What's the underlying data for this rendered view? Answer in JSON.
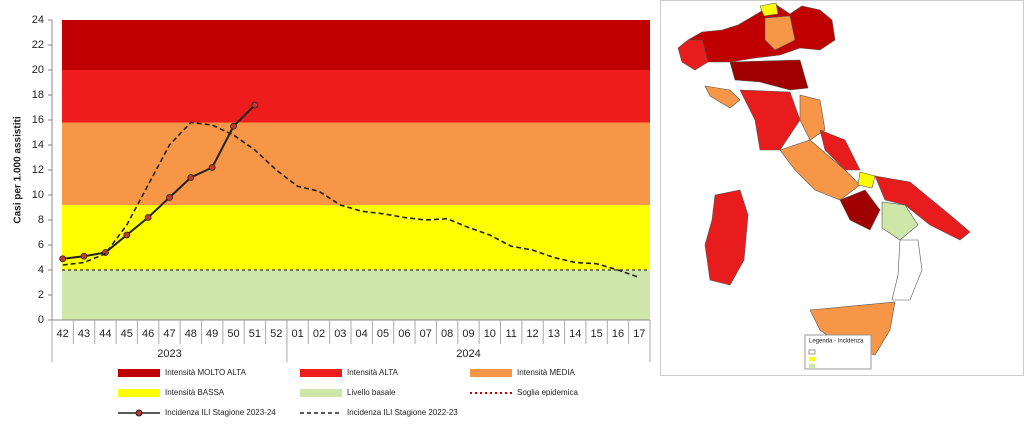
{
  "chart_data": [
    {
      "type": "line",
      "y_label": "Casi per 1.000 assistiti",
      "categories": [
        "42",
        "43",
        "44",
        "45",
        "46",
        "47",
        "48",
        "49",
        "50",
        "51",
        "52",
        "01",
        "02",
        "03",
        "04",
        "05",
        "06",
        "07",
        "08",
        "09",
        "10",
        "11",
        "12",
        "13",
        "14",
        "15",
        "16",
        "17"
      ],
      "x_groups": [
        {
          "label": "2023",
          "count": 11
        },
        {
          "label": "2024",
          "count": 17
        }
      ],
      "ylim": [
        0,
        24
      ],
      "yticks": [
        0,
        2,
        4,
        6,
        8,
        10,
        12,
        14,
        16,
        18,
        20,
        22,
        24
      ],
      "bands": [
        {
          "name": "Livello basale",
          "color": "#cfe6a9",
          "from": 0,
          "to": 4
        },
        {
          "name": "Intensità BASSA",
          "color": "#ffff00",
          "from": 4,
          "to": 9.2
        },
        {
          "name": "Intensità MEDIA",
          "color": "#f79646",
          "from": 9.2,
          "to": 15.8
        },
        {
          "name": "Intensità ALTA",
          "color": "#ee1c1c",
          "from": 15.8,
          "to": 20
        },
        {
          "name": "Intensità MOLTO ALTA",
          "color": "#c00000",
          "from": 20,
          "to": 24
        }
      ],
      "threshold": {
        "name": "Soglia epidemica",
        "value": 4,
        "color": "#c00000"
      },
      "series": [
        {
          "name": "Incidenza ILI Stagione 2023-24",
          "color": "#222222",
          "marker_color": "#c0392b",
          "values": [
            4.9,
            5.1,
            5.4,
            6.8,
            8.2,
            9.8,
            11.4,
            12.2,
            15.5,
            17.2,
            null,
            null,
            null,
            null,
            null,
            null,
            null,
            null,
            null,
            null,
            null,
            null,
            null,
            null,
            null,
            null,
            null,
            null
          ]
        },
        {
          "name": "Incidenza ILI Stagione 2022-23",
          "color": "#222222",
          "dashed": true,
          "values": [
            4.4,
            4.6,
            5.3,
            7.6,
            10.8,
            14.0,
            15.8,
            15.6,
            14.8,
            13.6,
            12.0,
            10.7,
            10.3,
            9.2,
            8.7,
            8.5,
            8.2,
            8.0,
            8.1,
            7.4,
            6.8,
            5.9,
            5.6,
            5.0,
            4.6,
            4.5,
            4.0,
            3.4
          ]
        }
      ]
    },
    {
      "type": "map",
      "legend_title": "Legenda - Incidenza"
    }
  ]
}
